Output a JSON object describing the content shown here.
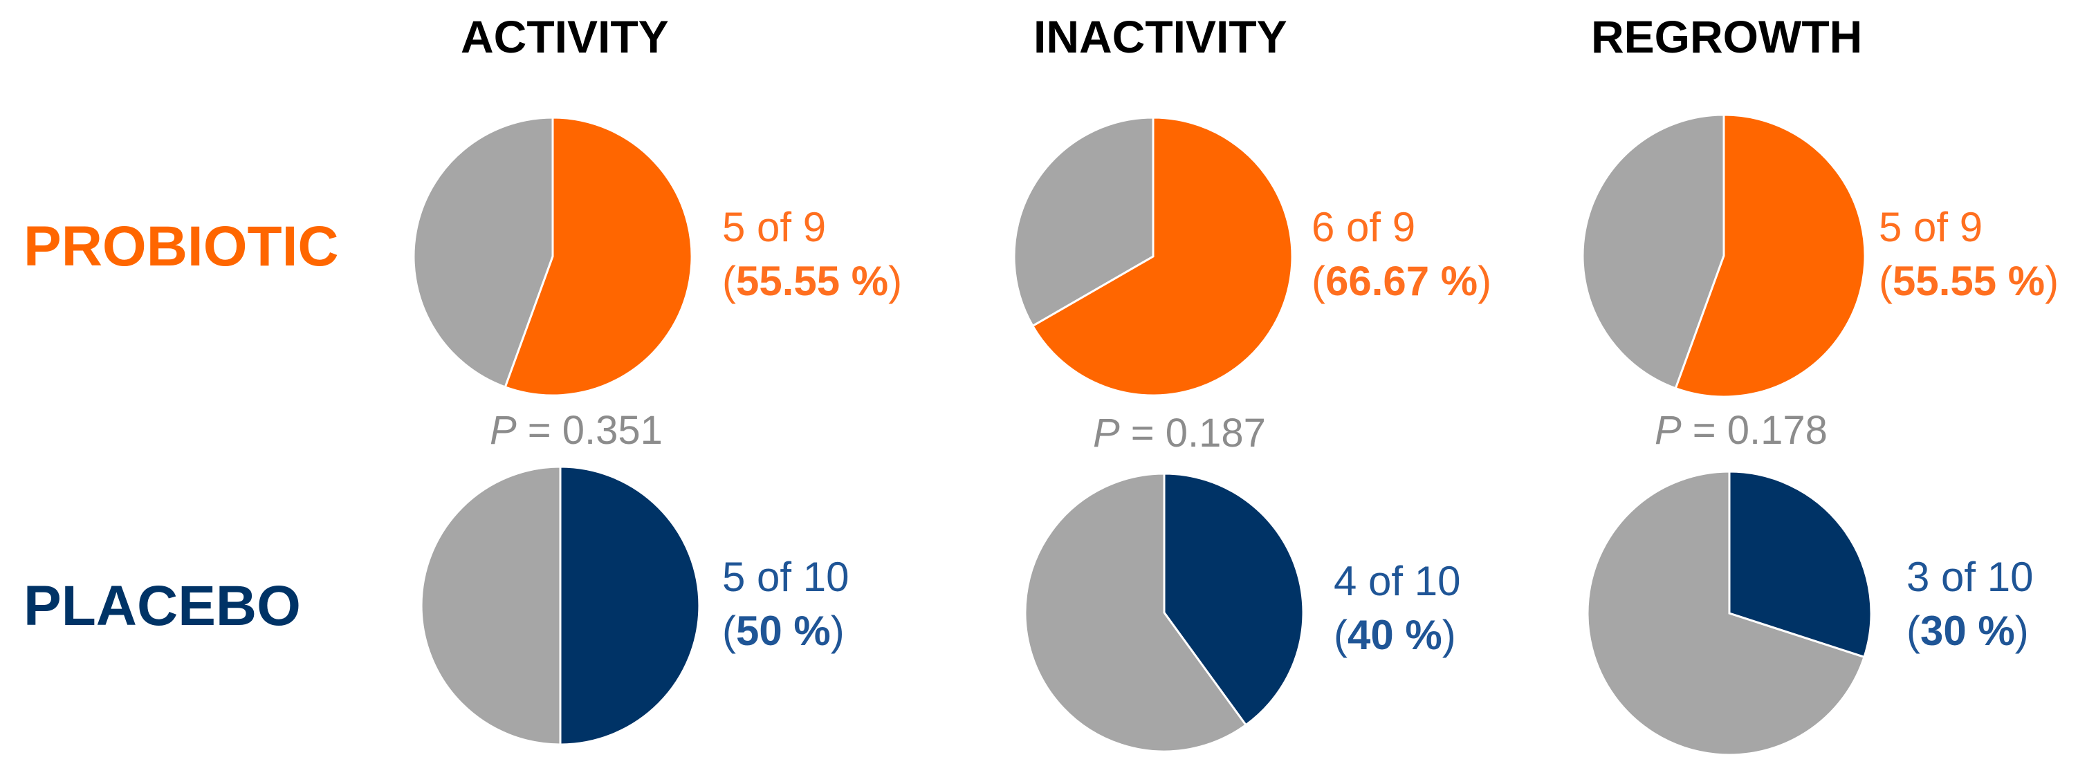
{
  "chart_data": {
    "type": "pie",
    "columns": [
      "ACTIVITY",
      "INACTIVITY",
      "REGROWTH"
    ],
    "rows": [
      {
        "name": "PROBIOTIC",
        "color": "#FF6600",
        "text_color": "#FF6F1F"
      },
      {
        "name": "PLACEBO",
        "color": "#003366",
        "text_color": "#1F5596"
      }
    ],
    "other_color": "#A6A6A6",
    "pies": [
      {
        "column": "ACTIVITY",
        "group": "PROBIOTIC",
        "count": 5,
        "total": 9,
        "count_label": "5 of 9",
        "pct_label": "55.55 %",
        "fraction": 0.5555
      },
      {
        "column": "INACTIVITY",
        "group": "PROBIOTIC",
        "count": 6,
        "total": 9,
        "count_label": "6 of 9",
        "pct_label": "66.67 %",
        "fraction": 0.6667
      },
      {
        "column": "REGROWTH",
        "group": "PROBIOTIC",
        "count": 5,
        "total": 9,
        "count_label": "5 of 9",
        "pct_label": "55.55 %",
        "fraction": 0.5555
      },
      {
        "column": "ACTIVITY",
        "group": "PLACEBO",
        "count": 5,
        "total": 10,
        "count_label": "5 of 10",
        "pct_label": "50 %",
        "fraction": 0.5
      },
      {
        "column": "INACTIVITY",
        "group": "PLACEBO",
        "count": 4,
        "total": 10,
        "count_label": "4 of 10",
        "pct_label": "40 %",
        "fraction": 0.4
      },
      {
        "column": "REGROWTH",
        "group": "PLACEBO",
        "count": 3,
        "total": 10,
        "count_label": "3 of 10",
        "pct_label": "30 %",
        "fraction": 0.3
      }
    ],
    "p_values": [
      {
        "column": "ACTIVITY",
        "symbol": "P",
        "text": " = 0.351",
        "value": 0.351
      },
      {
        "column": "INACTIVITY",
        "symbol": "P",
        "text": " = 0.187",
        "value": 0.187
      },
      {
        "column": "REGROWTH",
        "symbol": "P",
        "text": " = 0.178",
        "value": 0.178
      }
    ]
  }
}
